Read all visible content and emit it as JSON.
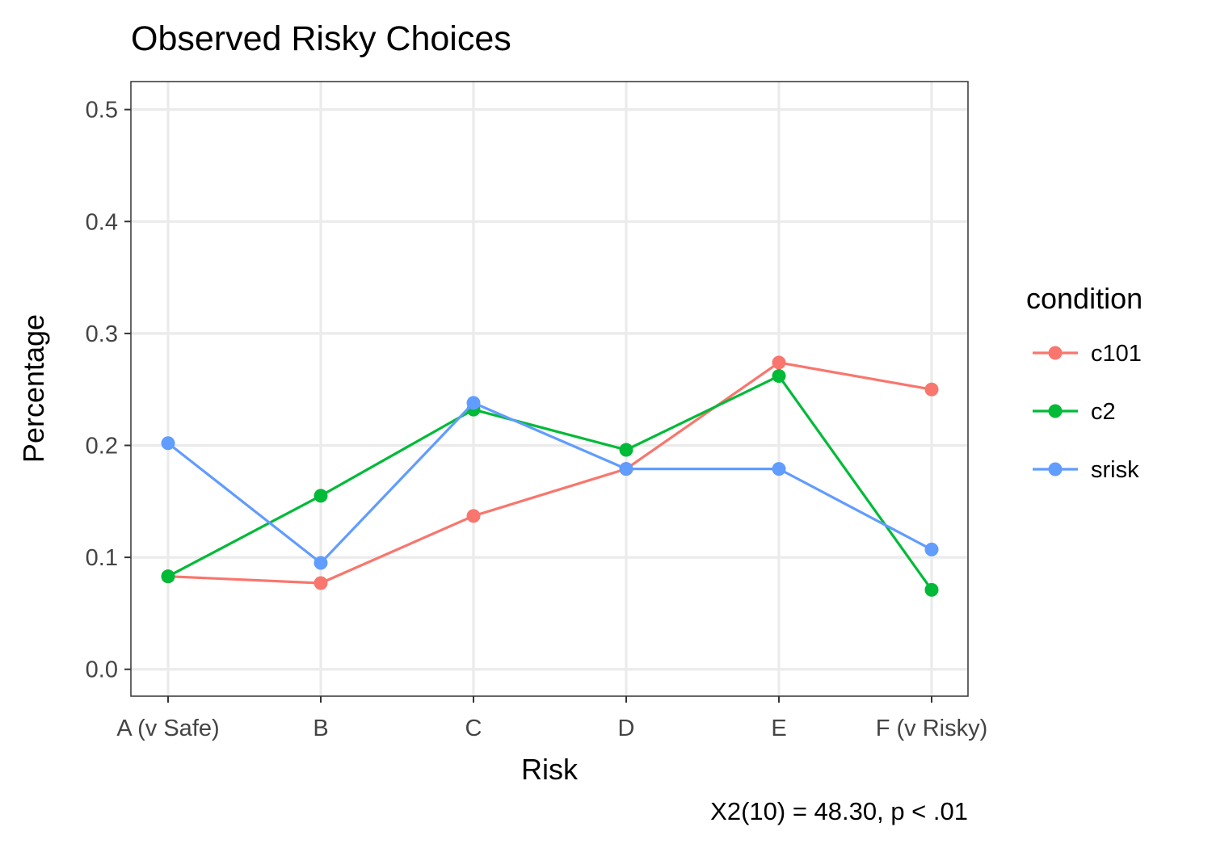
{
  "chart_data": {
    "type": "line",
    "title": "Observed Risky Choices",
    "xlabel": "Risk",
    "ylabel": "Percentage",
    "caption": "X2(10) = 48.30, p < .01",
    "categories": [
      "A (v Safe)",
      "B",
      "C",
      "D",
      "E",
      "F (v Risky)"
    ],
    "ylim": [
      -0.024,
      0.525
    ],
    "yticks": [
      0.0,
      0.1,
      0.2,
      0.3,
      0.4,
      0.5
    ],
    "ytick_labels": [
      "0.0",
      "0.1",
      "0.2",
      "0.3",
      "0.4",
      "0.5"
    ],
    "grid": true,
    "legend": {
      "title": "condition",
      "position": "right"
    },
    "series": [
      {
        "name": "c101",
        "color": "#F8766D",
        "values": [
          0.083,
          0.077,
          0.137,
          0.179,
          0.274,
          0.25
        ]
      },
      {
        "name": "c2",
        "color": "#00BA38",
        "values": [
          0.083,
          0.155,
          0.232,
          0.196,
          0.262,
          0.071
        ]
      },
      {
        "name": "srisk",
        "color": "#619CFF",
        "values": [
          0.202,
          0.095,
          0.238,
          0.179,
          0.179,
          0.107
        ]
      }
    ]
  }
}
